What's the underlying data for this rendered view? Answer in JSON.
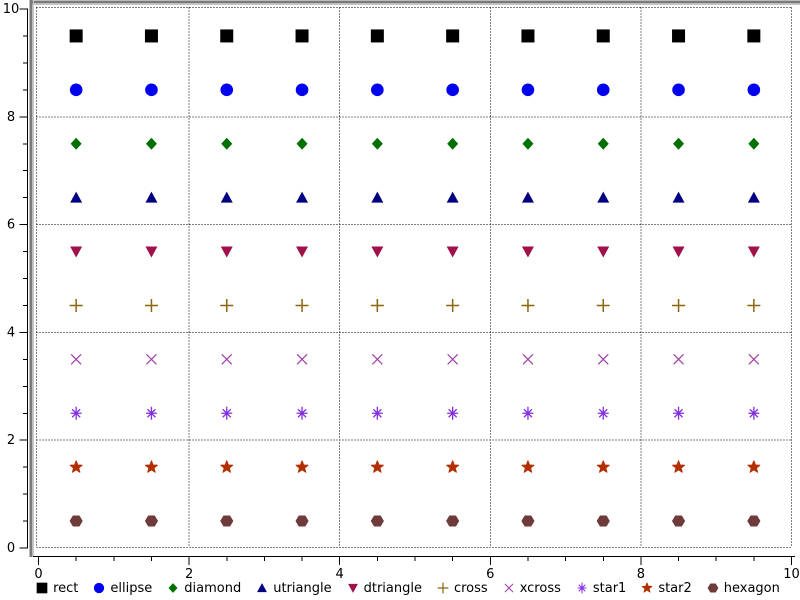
{
  "figure": {
    "background": "#ffffff",
    "frame_shadow_color": "#7a7a7a",
    "frame_shadow_light": "#c8c8c8",
    "axis_color": "#000000",
    "grid_color": "#000000",
    "tick_label_color": "#000000"
  },
  "axes": {
    "x": {
      "range": [
        0,
        10
      ],
      "major_ticks": [
        0,
        2,
        4,
        6,
        8,
        10
      ],
      "tick_labels": [
        "0",
        "2",
        "4",
        "6",
        "8",
        "10"
      ],
      "minor_step": 0.5
    },
    "y": {
      "range": [
        0,
        10
      ],
      "major_ticks": [
        0,
        2,
        4,
        6,
        8,
        10
      ],
      "tick_labels": [
        "0",
        "2",
        "4",
        "6",
        "8",
        "10"
      ],
      "minor_step": 0.5
    }
  },
  "chart_data": {
    "type": "scatter",
    "title": "",
    "xlabel": "",
    "ylabel": "",
    "xlim": [
      0,
      10
    ],
    "ylim": [
      0,
      10
    ],
    "grid": "dotted lines at major ticks plus dotted plot border",
    "legend_position": "bottom",
    "x": [
      0.5,
      1.5,
      2.5,
      3.5,
      4.5,
      5.5,
      6.5,
      7.5,
      8.5,
      9.5
    ],
    "series": [
      {
        "name": "rect",
        "shape": "rect",
        "color": "#000000",
        "y": 9.5
      },
      {
        "name": "ellipse",
        "shape": "ellipse",
        "color": "#0000f0",
        "y": 8.5
      },
      {
        "name": "diamond",
        "shape": "diamond",
        "color": "#007000",
        "y": 7.5
      },
      {
        "name": "utriangle",
        "shape": "utriangle",
        "color": "#000080",
        "y": 6.5
      },
      {
        "name": "dtriangle",
        "shape": "dtriangle",
        "color": "#a0104a",
        "y": 5.5
      },
      {
        "name": "cross",
        "shape": "cross",
        "color": "#8b6508",
        "y": 4.5
      },
      {
        "name": "xcross",
        "shape": "xcross",
        "color": "#a040a8",
        "y": 3.5
      },
      {
        "name": "star1",
        "shape": "star1",
        "color": "#8430e0",
        "y": 2.5
      },
      {
        "name": "star2",
        "shape": "star2",
        "color": "#b23000",
        "y": 1.5
      },
      {
        "name": "hexagon",
        "shape": "hexagon",
        "color": "#6e3a3a",
        "y": 0.5
      }
    ]
  },
  "legend": {
    "entries": [
      "rect",
      "ellipse",
      "diamond",
      "utriangle",
      "dtriangle",
      "cross",
      "xcross",
      "star1",
      "star2",
      "hexagon"
    ]
  }
}
